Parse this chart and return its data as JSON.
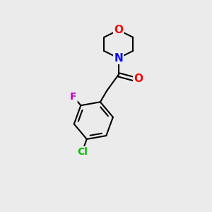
{
  "background_color": "#ebebeb",
  "bond_color": "#000000",
  "atom_colors": {
    "O": "#ff0000",
    "N": "#0000ff",
    "F": "#cc00cc",
    "Cl": "#00bb00",
    "C": "#000000"
  },
  "font_size_atoms": 11,
  "font_size_labels": 10,
  "figsize": [
    3.0,
    3.0
  ],
  "dpi": 100
}
